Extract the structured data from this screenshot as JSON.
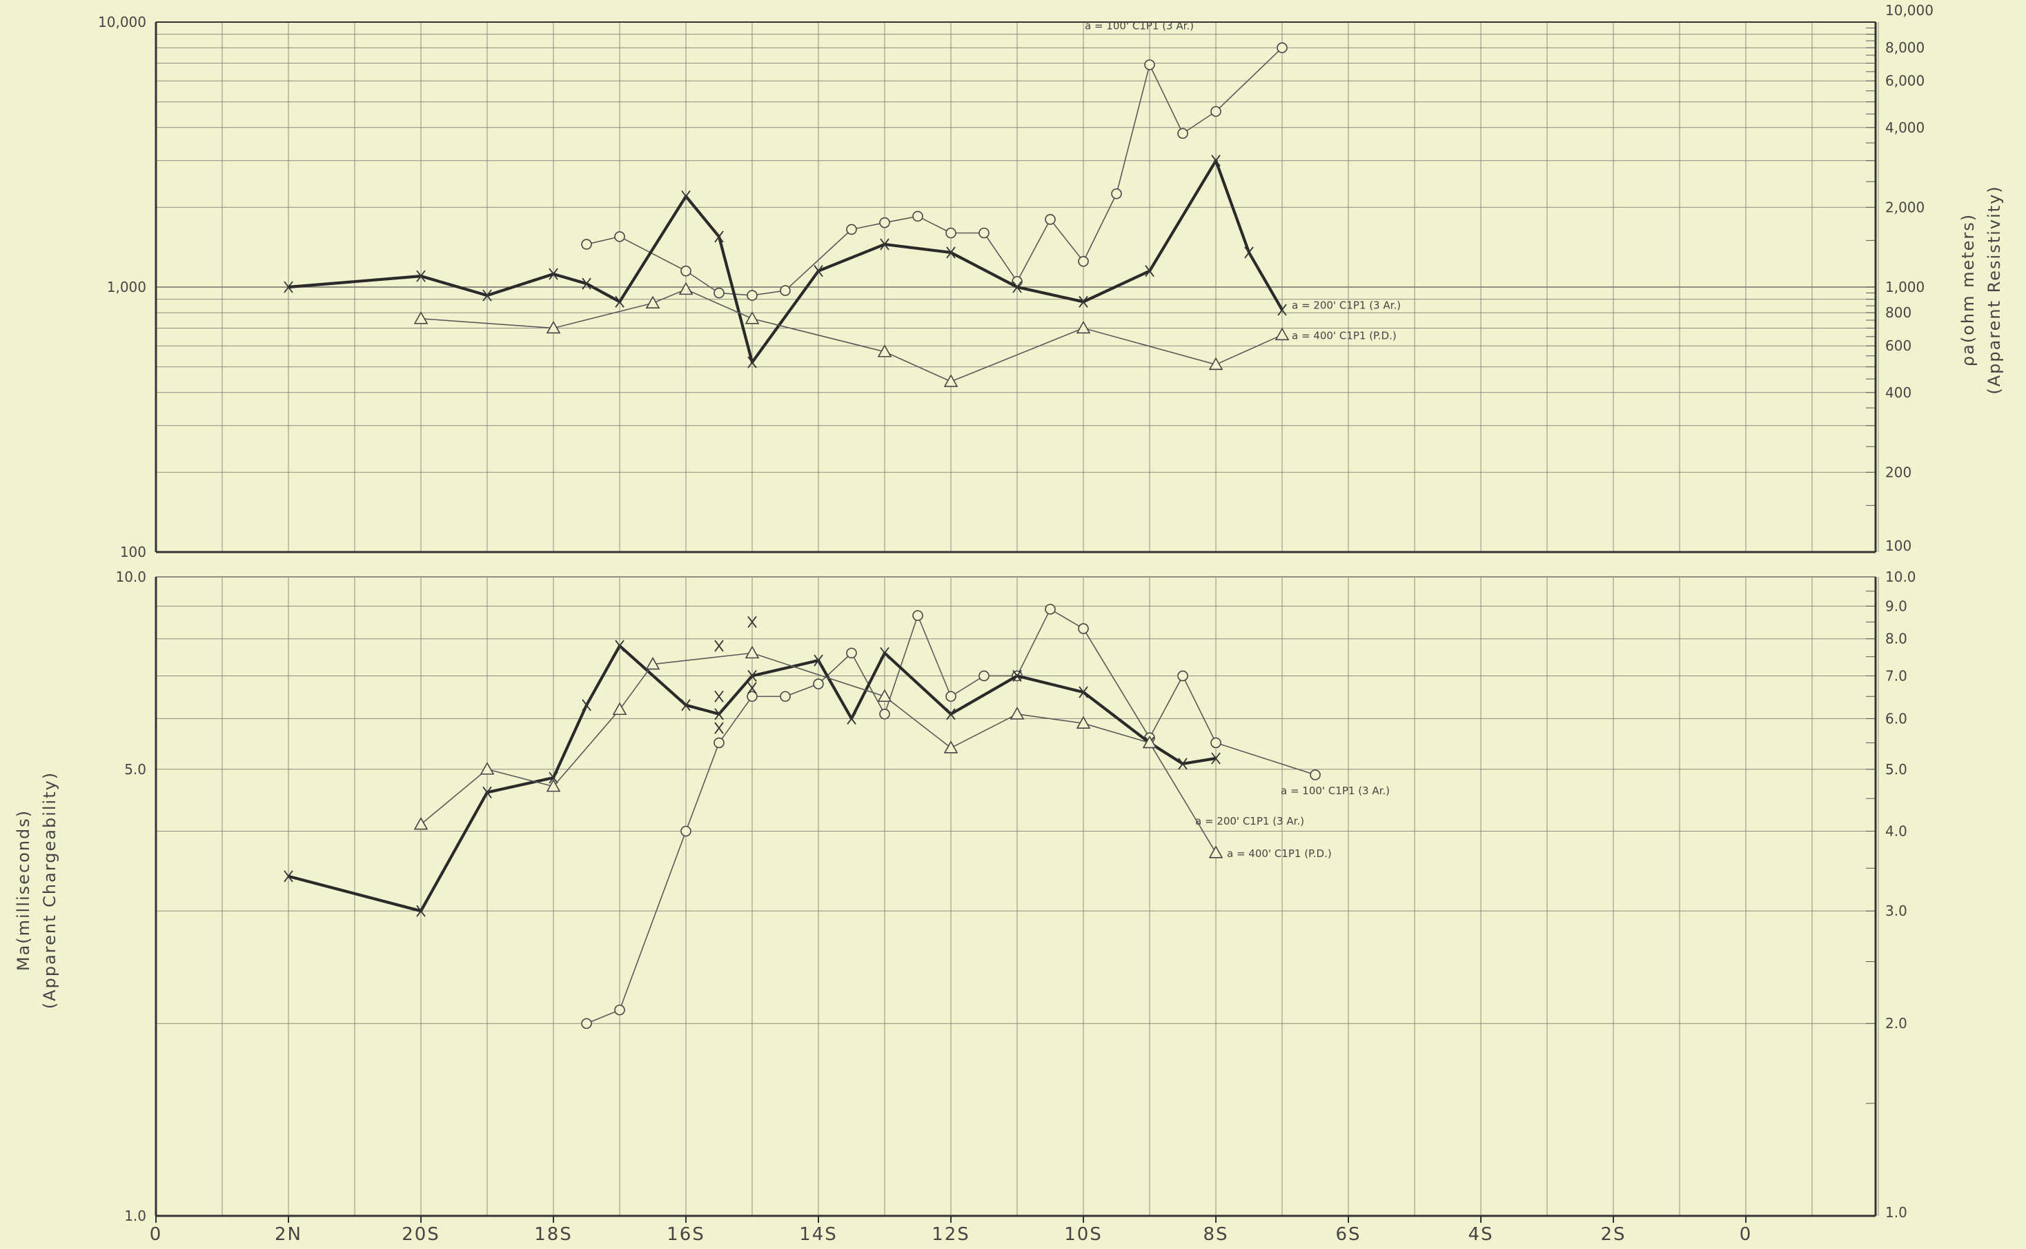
{
  "chart_data": [
    {
      "type": "line",
      "name": "resistivity-panel",
      "y_scale": "log",
      "ylim": [
        100,
        10000
      ],
      "left_ticks": [
        "10,000",
        "1,000",
        "100"
      ],
      "right_ticks": [
        "10,000",
        "8,000",
        "6,000",
        "4,000",
        "2,000",
        "1,000",
        "800",
        "600",
        "400",
        "200",
        "100"
      ],
      "ylabel_right": [
        "ρa(ohm meters)",
        "(Apparent Resistivity)"
      ],
      "series": [
        {
          "name": "a = 100' C1P1 (3 Ar.)",
          "marker": "circle",
          "points": [
            [
              -18.5,
              1450
            ],
            [
              -18,
              1550
            ],
            [
              -17,
              1150
            ],
            [
              -16.5,
              950
            ],
            [
              -16,
              930
            ],
            [
              -15.5,
              970
            ],
            [
              -14.5,
              1650
            ],
            [
              -14,
              1750
            ],
            [
              -13.5,
              1850
            ],
            [
              -13,
              1600
            ],
            [
              -12.5,
              1600
            ],
            [
              -12,
              1050
            ],
            [
              -11.5,
              1800
            ],
            [
              -11,
              1250
            ],
            [
              -10.5,
              2250
            ],
            [
              -10,
              6900
            ],
            [
              -9.5,
              3800
            ],
            [
              -9,
              4600
            ],
            [
              -8,
              8000
            ]
          ]
        },
        {
          "name": "a = 200' C1P1 (3 Ar.)",
          "marker": "x",
          "points": [
            [
              -23,
              1000
            ],
            [
              -21,
              1100
            ],
            [
              -20,
              930
            ],
            [
              -19,
              1120
            ],
            [
              -18.5,
              1030
            ],
            [
              -18,
              880
            ],
            [
              -17,
              2200
            ],
            [
              -16.5,
              1550
            ],
            [
              -16,
              520
            ],
            [
              -15,
              1150
            ],
            [
              -14,
              1450
            ],
            [
              -13,
              1350
            ],
            [
              -12,
              1000
            ],
            [
              -11,
              880
            ],
            [
              -10,
              1150
            ],
            [
              -9,
              3000
            ],
            [
              -8.5,
              1350
            ],
            [
              -8,
              820
            ]
          ]
        },
        {
          "name": "a = 400' C1P1 (P.D.)",
          "marker": "triangle",
          "points": [
            [
              -21,
              760
            ],
            [
              -19,
              700
            ],
            [
              -17.5,
              870
            ],
            [
              -17,
              980
            ],
            [
              -16,
              760
            ],
            [
              -14,
              570
            ],
            [
              -13,
              440
            ],
            [
              -11,
              700
            ],
            [
              -9,
              510
            ],
            [
              -8,
              660
            ]
          ]
        }
      ]
    },
    {
      "type": "line",
      "name": "chargeability-panel",
      "y_scale": "log",
      "ylim": [
        1.0,
        10.0
      ],
      "left_ticks": [
        "10.0",
        "5.0",
        "1.0"
      ],
      "right_ticks": [
        "10.0",
        "9.0",
        "8.0",
        "7.0",
        "6.0",
        "5.0",
        "4.0",
        "3.0",
        "2.0",
        "1.0"
      ],
      "ylabel_left": [
        "Ma(milliseconds)",
        "(Apparent Chargeability)"
      ],
      "series": [
        {
          "name": "a = 100' C1P1 (3 Ar.)",
          "marker": "circle",
          "points": [
            [
              -18.5,
              2.0
            ],
            [
              -18,
              2.1
            ],
            [
              -17,
              4.0
            ],
            [
              -16.5,
              5.5
            ],
            [
              -16,
              6.5
            ],
            [
              -15.5,
              6.5
            ],
            [
              -15,
              6.8
            ],
            [
              -14.5,
              7.6
            ],
            [
              -14,
              6.1
            ],
            [
              -13.5,
              8.7
            ],
            [
              -13,
              6.5
            ],
            [
              -12.5,
              7.0
            ],
            [
              -12,
              7.0
            ],
            [
              -11.5,
              8.9
            ],
            [
              -11,
              8.3
            ],
            [
              -10,
              5.6
            ],
            [
              -9.5,
              7.0
            ],
            [
              -9,
              5.5
            ],
            [
              -7.5,
              4.9
            ]
          ]
        },
        {
          "name": "a = 200' C1P1 (3 Ar.)",
          "marker": "x",
          "points": [
            [
              -23,
              3.4
            ],
            [
              -21,
              3.0
            ],
            [
              -20,
              4.6
            ],
            [
              -19,
              4.85
            ],
            [
              -18.5,
              6.3
            ],
            [
              -18,
              7.8
            ],
            [
              -17,
              6.3
            ],
            [
              -16.5,
              6.1
            ],
            [
              -16,
              7.0
            ],
            [
              -15,
              7.4
            ],
            [
              -14.5,
              6.0
            ],
            [
              -14,
              7.6
            ],
            [
              -13,
              6.1
            ],
            [
              -12,
              7.0
            ],
            [
              -11,
              6.6
            ],
            [
              -10,
              5.5
            ],
            [
              -9.5,
              5.1
            ],
            [
              -9,
              5.2
            ]
          ]
        },
        {
          "name": "a = 400' C1P1 (P.D.)",
          "marker": "triangle",
          "points": [
            [
              -21,
              4.1
            ],
            [
              -20,
              5.0
            ],
            [
              -19,
              4.7
            ],
            [
              -18,
              6.2
            ],
            [
              -17.5,
              7.3
            ],
            [
              -16,
              7.6
            ],
            [
              -14,
              6.5
            ],
            [
              -13,
              5.4
            ],
            [
              -12,
              6.1
            ],
            [
              -11,
              5.9
            ],
            [
              -10,
              5.5
            ],
            [
              -9,
              3.7
            ]
          ]
        }
      ],
      "extra_marks": [
        [
          -16.5,
          7.8
        ],
        [
          -16.5,
          6.5
        ],
        [
          -16.5,
          5.8
        ],
        [
          -16,
          8.5
        ],
        [
          -16,
          6.7
        ]
      ]
    }
  ],
  "x_axis": {
    "tick_labels": [
      "0",
      "2N",
      "20S",
      "18S",
      "16S",
      "14S",
      "12S",
      "10S",
      "8S",
      "6S",
      "4S",
      "2S",
      "0"
    ]
  }
}
